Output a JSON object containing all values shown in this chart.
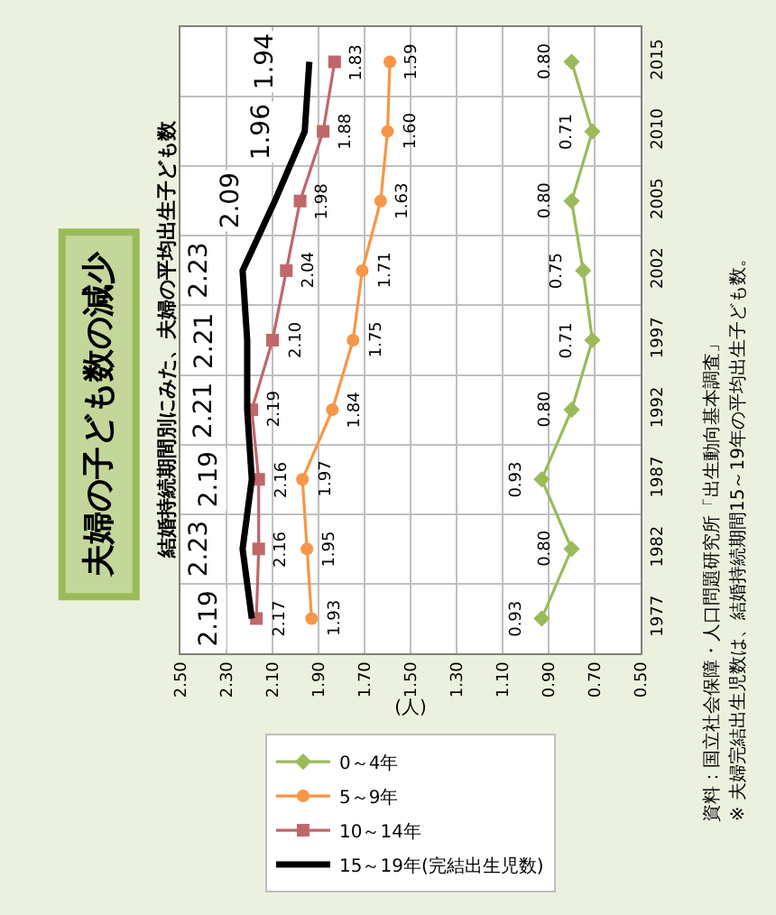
{
  "chart_data": {
    "type": "line",
    "orientation": "horizontal",
    "title": "夫婦の子ども数の減少",
    "subtitle": "結婚持続期間別にみた、夫婦の平均出生子ども数",
    "xlabel": "(人)",
    "categories": [
      "2015",
      "2010",
      "2005",
      "2002",
      "1997",
      "1992",
      "1987",
      "1982",
      "1977"
    ],
    "series": [
      {
        "name": "0～4年",
        "color": "#9bbb59",
        "marker": "diamond",
        "values": [
          0.8,
          0.71,
          0.8,
          0.75,
          0.71,
          0.8,
          0.93,
          0.8,
          0.93
        ],
        "value_labels": [
          "0.80",
          "0.71",
          "0.80",
          "0.75",
          "0.71",
          "0.80",
          "0.93",
          "0.80",
          "0.93"
        ]
      },
      {
        "name": "5～9年",
        "color": "#f79646",
        "marker": "circle",
        "values": [
          1.59,
          1.6,
          1.63,
          1.71,
          1.75,
          1.84,
          1.97,
          1.95,
          1.93
        ],
        "value_labels": [
          "1.59",
          "1.60",
          "1.63",
          "1.71",
          "1.75",
          "1.84",
          "1.97",
          "1.95",
          "1.93"
        ]
      },
      {
        "name": "10～14年",
        "color": "#c0676a",
        "marker": "square",
        "values": [
          1.83,
          1.88,
          1.98,
          2.04,
          2.1,
          2.19,
          2.16,
          2.16,
          2.17
        ],
        "value_labels": [
          "1.83",
          "1.88",
          "1.98",
          "2.04",
          "2.10",
          "2.19",
          "2.16",
          "2.16",
          "2.17"
        ]
      },
      {
        "name": "15～19年(完結出生児数)",
        "color": "#000000",
        "marker": "none",
        "values": [
          1.94,
          1.96,
          2.09,
          2.23,
          2.21,
          2.21,
          2.19,
          2.23,
          2.19
        ],
        "value_labels": [
          "1.94",
          "1.96",
          "2.09",
          "2.23",
          "2.21",
          "2.21",
          "2.19",
          "2.23",
          "2.19"
        ]
      }
    ],
    "xlim": [
      2.5,
      0.5
    ],
    "xticks": [
      {
        "value": 2.5,
        "label": "2.50"
      },
      {
        "value": 2.3,
        "label": "2.30"
      },
      {
        "value": 2.1,
        "label": "2.10"
      },
      {
        "value": 1.9,
        "label": "1.90"
      },
      {
        "value": 1.7,
        "label": "1.70"
      },
      {
        "value": 1.5,
        "label": "1.50"
      },
      {
        "value": 1.3,
        "label": "1.30"
      },
      {
        "value": 1.1,
        "label": "1.10"
      },
      {
        "value": 0.9,
        "label": "0.90"
      },
      {
        "value": 0.7,
        "label": "0.70"
      },
      {
        "value": 0.5,
        "label": "0.50"
      }
    ],
    "grid": true,
    "legend": "bottom",
    "annotations": [
      "資料：国立社会保障・人口問題研究所「出生動向基本調査」",
      "※ 夫婦完結出生児数は、結婚持続期間15～19年の平均出生子ども数。"
    ]
  }
}
